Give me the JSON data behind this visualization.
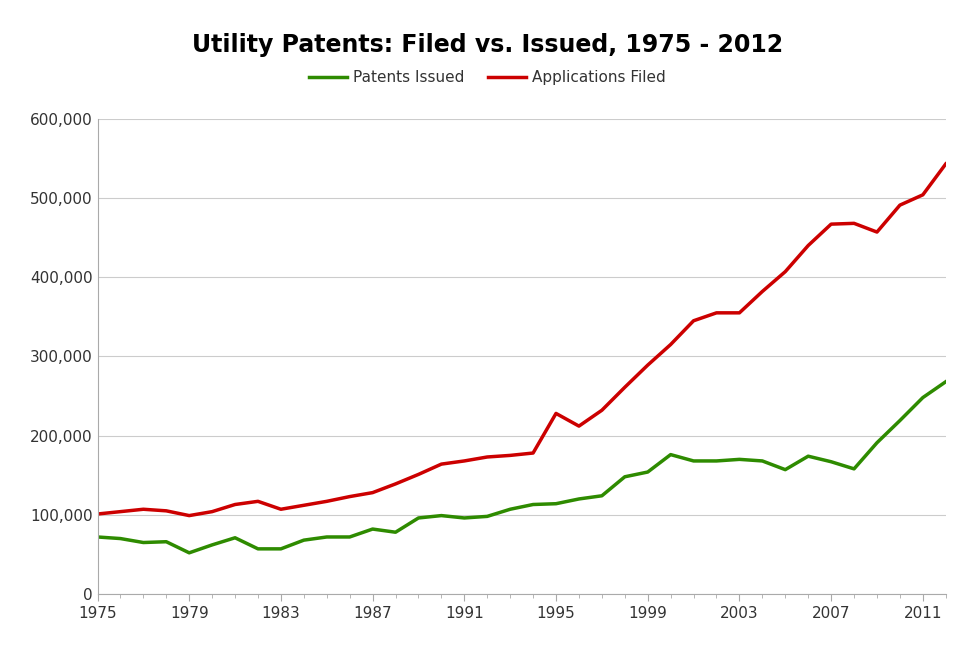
{
  "title": "Utility Patents: Filed vs. Issued, 1975 - 2012",
  "legend_issued": "Patents Issued",
  "legend_filed": "Applications Filed",
  "color_issued": "#2e8b00",
  "color_filed": "#cc0000",
  "background_color": "#ffffff",
  "plot_bg_color": "#ffffff",
  "years": [
    1975,
    1976,
    1977,
    1978,
    1979,
    1980,
    1981,
    1982,
    1983,
    1984,
    1985,
    1986,
    1987,
    1988,
    1989,
    1990,
    1991,
    1992,
    1993,
    1994,
    1995,
    1996,
    1997,
    1998,
    1999,
    2000,
    2001,
    2002,
    2003,
    2004,
    2005,
    2006,
    2007,
    2008,
    2009,
    2010,
    2011,
    2012
  ],
  "applications_filed": [
    101000,
    104000,
    107000,
    105000,
    99000,
    104000,
    113000,
    117000,
    107000,
    112000,
    117000,
    123000,
    128000,
    139000,
    151000,
    164000,
    168000,
    173000,
    175000,
    178000,
    228000,
    212000,
    232000,
    261000,
    289000,
    315000,
    345000,
    355000,
    355000,
    382000,
    407000,
    440000,
    467000,
    468000,
    457000,
    491000,
    504000,
    543000
  ],
  "patents_issued": [
    72000,
    70000,
    65000,
    66000,
    52000,
    62000,
    71000,
    57000,
    57000,
    68000,
    72000,
    72000,
    82000,
    78000,
    96000,
    99000,
    96000,
    98000,
    107000,
    113000,
    114000,
    120000,
    124000,
    148000,
    154000,
    176000,
    168000,
    168000,
    170000,
    168000,
    157000,
    174000,
    167000,
    158000,
    191000,
    219000,
    248000,
    268000
  ],
  "ylim": [
    0,
    600000
  ],
  "yticks": [
    0,
    100000,
    200000,
    300000,
    400000,
    500000,
    600000
  ],
  "xticks": [
    1975,
    1979,
    1983,
    1987,
    1991,
    1995,
    1999,
    2003,
    2007,
    2011
  ],
  "linewidth": 2.5,
  "title_fontsize": 17,
  "tick_fontsize": 11,
  "legend_fontsize": 11,
  "grid_color": "#cccccc",
  "spine_color": "#aaaaaa"
}
